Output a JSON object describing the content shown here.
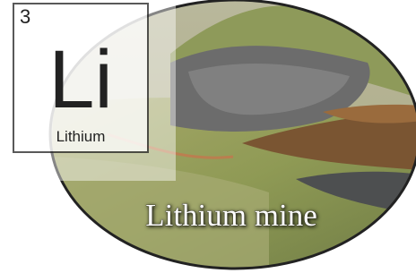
{
  "element": {
    "number": "3",
    "symbol": "Li",
    "name": "Lithium"
  },
  "caption": "Lithium mine"
}
